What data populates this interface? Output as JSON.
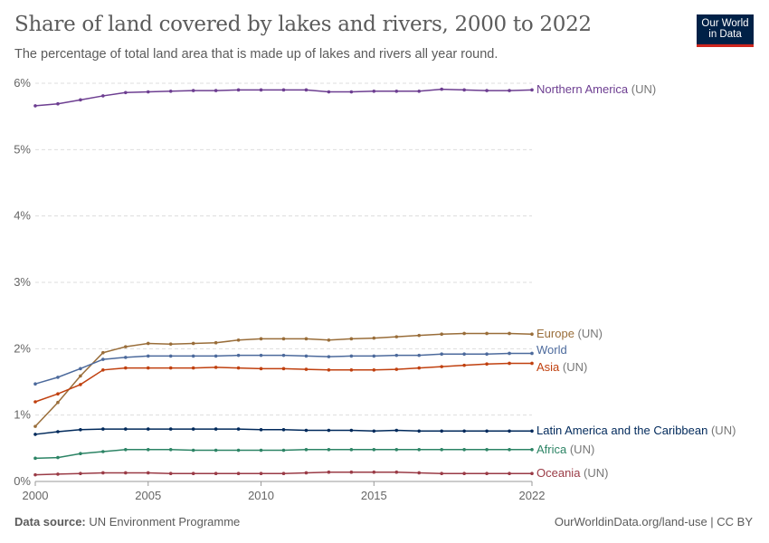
{
  "header": {
    "title": "Share of land covered by lakes and rivers, 2000 to 2022",
    "subtitle": "The percentage of total land area that is made up of lakes and rivers all year round.",
    "logo": "Our World in Data"
  },
  "footer": {
    "source_label": "Data source:",
    "source": "UN Environment Programme",
    "credit": "OurWorldinData.org/land-use | CC BY"
  },
  "chart_data": {
    "type": "line",
    "title": "Share of land covered by lakes and rivers, 2000 to 2022",
    "xlim": [
      2000,
      2022
    ],
    "ylim": [
      0,
      6
    ],
    "x_ticks": [
      2000,
      2005,
      2010,
      2015,
      2022
    ],
    "y_ticks": [
      {
        "v": 0,
        "label": "0%"
      },
      {
        "v": 1,
        "label": "1%"
      },
      {
        "v": 2,
        "label": "2%"
      },
      {
        "v": 3,
        "label": "3%"
      },
      {
        "v": 4,
        "label": "4%"
      },
      {
        "v": 5,
        "label": "5%"
      },
      {
        "v": 6,
        "label": "6%"
      }
    ],
    "grid": "horizontal dashed",
    "legend": "right, inline labels",
    "x": [
      2000,
      2001,
      2002,
      2003,
      2004,
      2005,
      2006,
      2007,
      2008,
      2009,
      2010,
      2011,
      2012,
      2013,
      2014,
      2015,
      2016,
      2017,
      2018,
      2019,
      2020,
      2021,
      2022
    ],
    "series": [
      {
        "name": "Northern America",
        "suffix": "(UN)",
        "color": "#6D3E91",
        "values": [
          5.66,
          5.69,
          5.75,
          5.81,
          5.86,
          5.87,
          5.88,
          5.89,
          5.89,
          5.9,
          5.9,
          5.9,
          5.9,
          5.87,
          5.87,
          5.88,
          5.88,
          5.88,
          5.91,
          5.9,
          5.89,
          5.89,
          5.9
        ]
      },
      {
        "name": "Europe",
        "suffix": "(UN)",
        "color": "#996D39",
        "values": [
          0.83,
          1.19,
          1.59,
          1.94,
          2.03,
          2.08,
          2.07,
          2.08,
          2.09,
          2.13,
          2.15,
          2.15,
          2.15,
          2.13,
          2.15,
          2.16,
          2.18,
          2.2,
          2.22,
          2.23,
          2.23,
          2.23,
          2.22
        ]
      },
      {
        "name": "World",
        "suffix": "",
        "color": "#4C6A9C",
        "values": [
          1.47,
          1.57,
          1.7,
          1.84,
          1.87,
          1.89,
          1.89,
          1.89,
          1.89,
          1.9,
          1.9,
          1.9,
          1.89,
          1.88,
          1.89,
          1.89,
          1.9,
          1.9,
          1.92,
          1.92,
          1.92,
          1.93,
          1.93
        ]
      },
      {
        "name": "Asia",
        "suffix": "(UN)",
        "color": "#C0400F",
        "values": [
          1.2,
          1.32,
          1.46,
          1.68,
          1.71,
          1.71,
          1.71,
          1.71,
          1.72,
          1.71,
          1.7,
          1.7,
          1.69,
          1.68,
          1.68,
          1.68,
          1.69,
          1.71,
          1.73,
          1.75,
          1.77,
          1.78,
          1.78
        ]
      },
      {
        "name": "Latin America and the Caribbean",
        "suffix": "(UN)",
        "color": "#00295B",
        "values": [
          0.71,
          0.75,
          0.78,
          0.79,
          0.79,
          0.79,
          0.79,
          0.79,
          0.79,
          0.79,
          0.78,
          0.78,
          0.77,
          0.77,
          0.77,
          0.76,
          0.77,
          0.76,
          0.76,
          0.76,
          0.76,
          0.76,
          0.76
        ]
      },
      {
        "name": "Africa",
        "suffix": "(UN)",
        "color": "#2C8465",
        "values": [
          0.35,
          0.36,
          0.42,
          0.45,
          0.48,
          0.48,
          0.48,
          0.47,
          0.47,
          0.47,
          0.47,
          0.47,
          0.48,
          0.48,
          0.48,
          0.48,
          0.48,
          0.48,
          0.48,
          0.48,
          0.48,
          0.48,
          0.48
        ]
      },
      {
        "name": "Oceania",
        "suffix": "(UN)",
        "color": "#9A3B46",
        "values": [
          0.1,
          0.11,
          0.12,
          0.13,
          0.13,
          0.13,
          0.12,
          0.12,
          0.12,
          0.12,
          0.12,
          0.12,
          0.13,
          0.14,
          0.14,
          0.14,
          0.14,
          0.13,
          0.12,
          0.12,
          0.12,
          0.12,
          0.12
        ]
      }
    ]
  }
}
